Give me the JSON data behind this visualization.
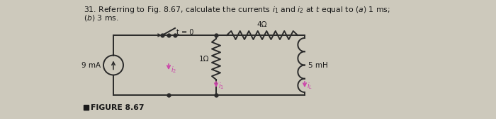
{
  "title_line1": "31. Referring to Fig. 8.67, calculate the currents $i_1$ and $i_2$ at $t$ equal to $(a)$ 1 ms;",
  "title_line2": "$(b)$ 3 ms.",
  "bg_color": "#cdc9bc",
  "fig_label": "FIGURE 8.67",
  "current_source_label": "9 mA",
  "switch_label": "t = 0",
  "resistor4_label": "4Ω",
  "resistor1_label": "1Ω",
  "inductor_label": "5 mH",
  "wire_color": "#2a2a2a",
  "text_color": "#1a1a1a",
  "arrow_color": "#cc44aa"
}
